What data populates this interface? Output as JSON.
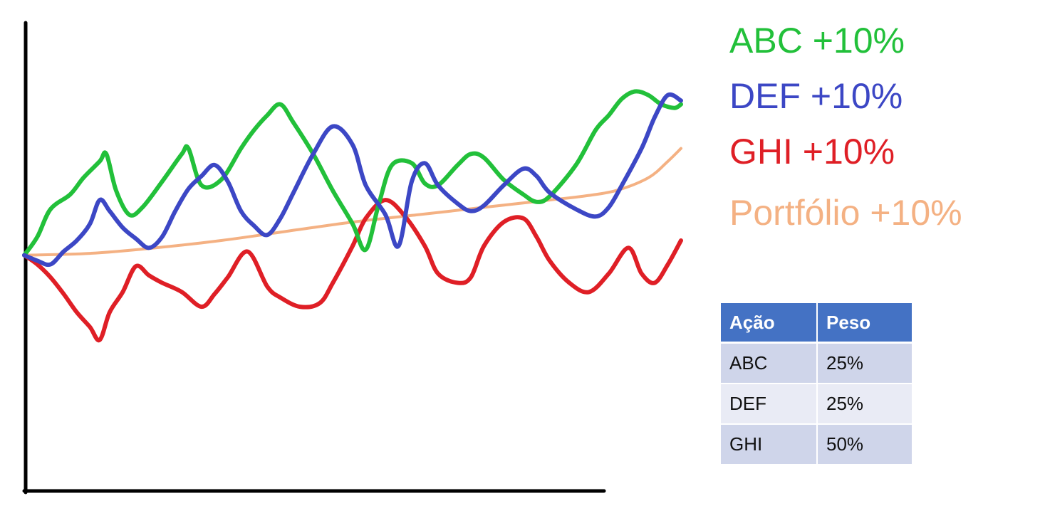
{
  "chart_data": {
    "type": "line",
    "title": "",
    "xlabel": "",
    "ylabel": "",
    "xlim": [
      0,
      100
    ],
    "ylim": [
      -50,
      100
    ],
    "grid": false,
    "legend_position": "top-right",
    "series": [
      {
        "name": "ABC",
        "label": "ABC +10%",
        "color": "#22c03a",
        "x": [
          0,
          2,
          4,
          7,
          9,
          11.5,
          12.5,
          14,
          16,
          18,
          21,
          24,
          25,
          27,
          30,
          33,
          35,
          37,
          39,
          41,
          44,
          47,
          50,
          52,
          54,
          56,
          59,
          61,
          63,
          66,
          68,
          70,
          73,
          76,
          78,
          80,
          84,
          87,
          89,
          91,
          93,
          95,
          97,
          99,
          100
        ],
        "y": [
          0,
          10,
          25,
          33,
          42,
          51,
          55,
          35,
          22,
          26,
          40,
          55,
          58,
          38,
          41,
          58,
          68,
          76,
          82,
          72,
          55,
          35,
          17,
          3,
          28,
          49,
          50,
          39,
          38,
          49,
          55,
          53,
          41,
          33,
          29,
          32,
          49,
          68,
          76,
          85,
          89,
          87,
          82,
          80,
          82
        ]
      },
      {
        "name": "DEF",
        "label": "DEF +10%",
        "color": "#3c47c5",
        "x": [
          0,
          2,
          4,
          6,
          8,
          10,
          11.5,
          13,
          15,
          17,
          19,
          21,
          23,
          25,
          27,
          29,
          31,
          33,
          35,
          37,
          39,
          41,
          44,
          47,
          50,
          52,
          55,
          57,
          59,
          61,
          63,
          66,
          68,
          70,
          73,
          76,
          78,
          80,
          84,
          87,
          89,
          91,
          94,
          96,
          98,
          100
        ],
        "y": [
          0,
          -3,
          -5,
          2,
          8,
          17,
          30,
          24,
          15,
          9,
          4,
          10,
          24,
          36,
          43,
          49,
          40,
          24,
          16,
          11,
          20,
          34,
          55,
          70,
          60,
          38,
          22,
          5,
          40,
          50,
          38,
          28,
          24,
          27,
          38,
          47,
          43,
          34,
          25,
          21,
          26,
          38,
          58,
          75,
          87,
          84
        ]
      },
      {
        "name": "GHI",
        "label": "GHI +10%",
        "color": "#df1f26",
        "x": [
          0,
          2,
          4,
          6,
          8,
          10,
          11.5,
          13,
          15,
          17,
          19,
          21,
          24,
          27,
          29,
          31,
          34,
          37,
          39,
          42,
          45,
          47,
          50,
          52,
          55,
          58,
          61,
          63,
          66,
          68,
          70,
          73,
          76,
          78,
          80,
          83,
          86,
          89,
          92,
          94,
          96,
          98,
          100
        ],
        "y": [
          0,
          -5,
          -12,
          -21,
          -31,
          -39,
          -46,
          -31,
          -20,
          -6,
          -11,
          -15,
          -20,
          -28,
          -21,
          -12,
          2,
          -17,
          -23,
          -28,
          -26,
          -15,
          5,
          20,
          30,
          21,
          5,
          -10,
          -15,
          -12,
          5,
          18,
          20,
          10,
          -3,
          -15,
          -20,
          -10,
          4,
          -10,
          -15,
          -5,
          8
        ]
      },
      {
        "name": "Portfólio",
        "label": "Portfólio +10%",
        "color": "#f4b183",
        "x": [
          0,
          10,
          20,
          30,
          40,
          50,
          60,
          70,
          80,
          85,
          90,
          95,
          98,
          100
        ],
        "y": [
          0,
          1,
          4,
          8,
          13,
          18,
          22,
          26,
          30,
          32,
          35,
          42,
          51,
          58
        ]
      }
    ]
  },
  "weights_table": {
    "header_bg": "#4472c4",
    "row_bg": [
      "#cfd5ea",
      "#e9ebf5",
      "#cfd5ea"
    ],
    "headers": [
      "Ação",
      "Peso"
    ],
    "rows": [
      [
        "ABC",
        "25%"
      ],
      [
        "DEF",
        "25%"
      ],
      [
        "GHI",
        "50%"
      ]
    ]
  }
}
